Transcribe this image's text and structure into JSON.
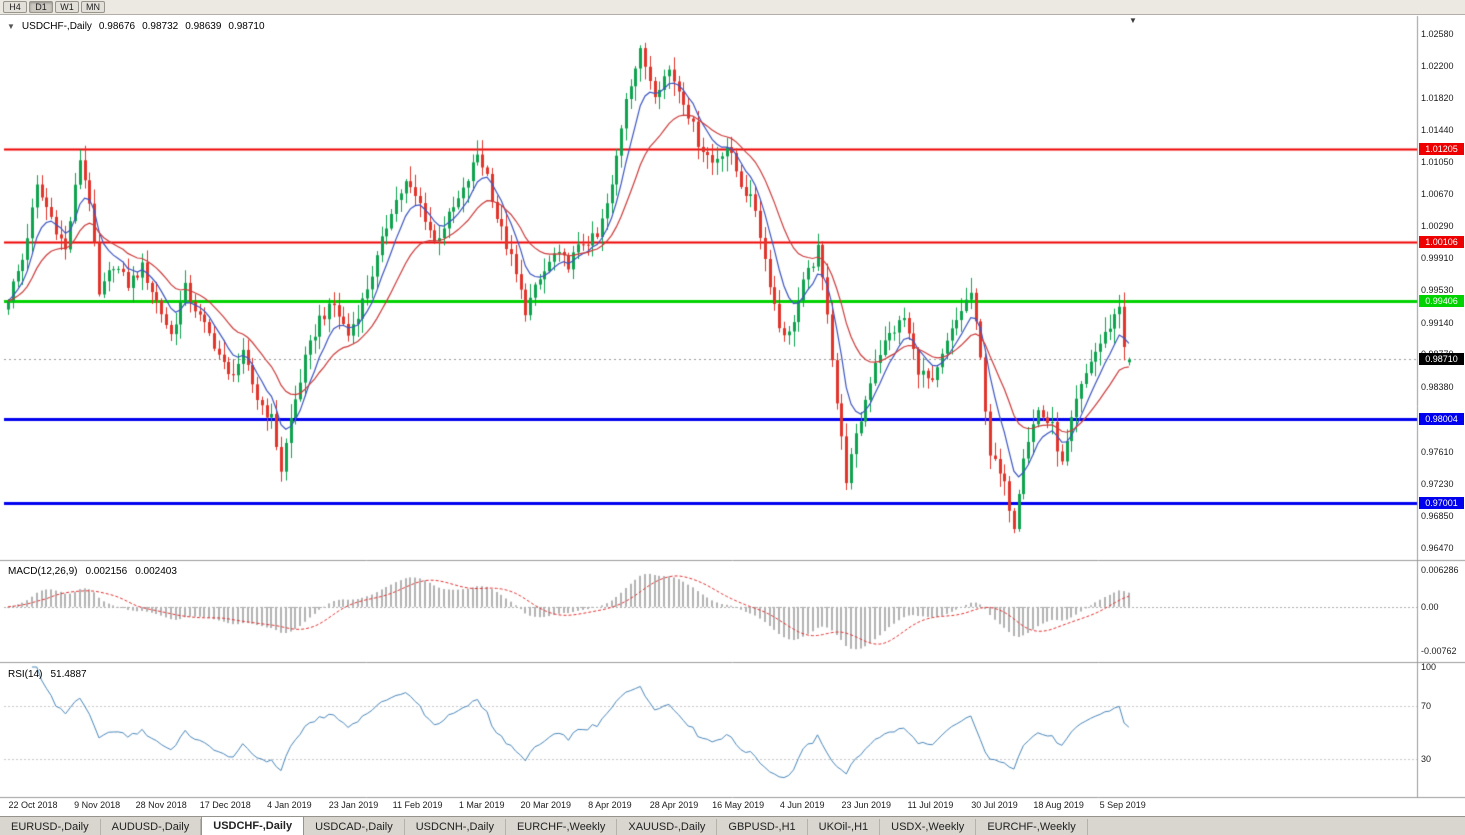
{
  "icons": {
    "expand_caret": "▼",
    "end_marker": "▼"
  },
  "toolbar": {
    "periods": [
      {
        "label": "H4",
        "active": false
      },
      {
        "label": "D1",
        "active": true
      },
      {
        "label": "W1",
        "active": false
      },
      {
        "label": "MN",
        "active": false
      }
    ]
  },
  "chart": {
    "header": {
      "symbol": "USDCHF-,Daily",
      "open": "0.98676",
      "high": "0.98732",
      "low": "0.98639",
      "close": "0.98710"
    },
    "price_axis_ticks": [
      "1.02580",
      "1.02200",
      "1.01820",
      "1.01440",
      "1.01050",
      "1.00670",
      "1.00290",
      "0.99910",
      "0.99530",
      "0.99140",
      "0.98770",
      "0.98380",
      "0.97610",
      "0.97230",
      "0.96850",
      "0.96470"
    ],
    "levels": [
      {
        "label": "1.01205",
        "value": 1.01205,
        "color": "#ee0000",
        "width": 2
      },
      {
        "label": "1.00106",
        "value": 1.00106,
        "color": "#ee0000",
        "width": 2
      },
      {
        "label": "0.99406",
        "value": 0.99406,
        "color": "#00d200",
        "width": 3
      },
      {
        "label": "0.98004",
        "value": 0.98004,
        "color": "#0000ee",
        "width": 3
      },
      {
        "label": "0.97001",
        "value": 0.97001,
        "color": "#0000ee",
        "width": 3
      }
    ],
    "current_price": {
      "label": "0.98710",
      "value": 0.9871,
      "bg": "#000000"
    },
    "date_axis": [
      "22 Oct 2018",
      "9 Nov 2018",
      "28 Nov 2018",
      "17 Dec 2018",
      "4 Jan 2019",
      "23 Jan 2019",
      "11 Feb 2019",
      "1 Mar 2019",
      "20 Mar 2019",
      "8 Apr 2019",
      "28 Apr 2019",
      "16 May 2019",
      "4 Jun 2019",
      "23 Jun 2019",
      "11 Jul 2019",
      "30 Jul 2019",
      "18 Aug 2019",
      "5 Sep 2019"
    ]
  },
  "macd": {
    "name": "MACD(12,26,9)",
    "value_main": "0.002156",
    "value_signal": "0.002403",
    "axis": [
      {
        "label": "0.006286",
        "value": 0.006286
      },
      {
        "label": "0.00",
        "value": 0
      },
      {
        "label": "-0.00762",
        "value": -0.00762
      }
    ]
  },
  "rsi": {
    "name": "RSI(14)",
    "value": "51.4887",
    "axis": [
      {
        "label": "100",
        "value": 100
      },
      {
        "label": "70",
        "value": 70
      },
      {
        "label": "30",
        "value": 30
      }
    ],
    "levels": [
      70,
      30
    ]
  },
  "tabs": [
    {
      "label": "EURUSD-,Daily",
      "active": false
    },
    {
      "label": "AUDUSD-,Daily",
      "active": false
    },
    {
      "label": "USDCHF-,Daily",
      "active": true
    },
    {
      "label": "USDCAD-,Daily",
      "active": false
    },
    {
      "label": "USDCNH-,Daily",
      "active": false
    },
    {
      "label": "EURCHF-,Weekly",
      "active": false
    },
    {
      "label": "XAUUSD-,Daily",
      "active": false
    },
    {
      "label": "GBPUSD-,H1",
      "active": false
    },
    {
      "label": "UKOil-,H1",
      "active": false
    },
    {
      "label": "USDX-,Weekly",
      "active": false
    },
    {
      "label": "EURCHF-,Weekly",
      "active": false
    }
  ],
  "colors": {
    "up": "#0fa34f",
    "down": "#e0352b",
    "ma_fast": "#3c55c0",
    "ma_slow": "#cc3b3b",
    "macd_hist": "#b3b3b3",
    "macd_signal": "#e03333",
    "rsi_line": "#4a86b8",
    "level_dotted": "#9a9a9a"
  },
  "chart_data": {
    "type": "candlestick",
    "title": "USDCHF-,Daily",
    "symbol": "USDCHF-",
    "timeframe": "Daily",
    "n": 235,
    "last_ohlc": {
      "open": 0.98676,
      "high": 0.98732,
      "low": 0.98639,
      "close": 0.9871
    },
    "y_axis_range": [
      0.9641,
      1.0279
    ],
    "y_axis_ticks": [
      1.0258,
      1.022,
      1.0182,
      1.0144,
      1.0105,
      1.0067,
      1.0029,
      0.9991,
      0.9953,
      0.9914,
      0.9877,
      0.9838,
      0.9761,
      0.9723,
      0.9685,
      0.9647
    ],
    "x_axis_dates": [
      "22 Oct 2018",
      "9 Nov 2018",
      "28 Nov 2018",
      "17 Dec 2018",
      "4 Jan 2019",
      "23 Jan 2019",
      "11 Feb 2019",
      "1 Mar 2019",
      "20 Mar 2019",
      "8 Apr 2019",
      "28 Apr 2019",
      "16 May 2019",
      "4 Jun 2019",
      "23 Jun 2019",
      "11 Jul 2019",
      "30 Jul 2019",
      "18 Aug 2019",
      "5 Sep 2019"
    ],
    "horizontal_levels": [
      {
        "price": 1.01205,
        "color": "red"
      },
      {
        "price": 1.00106,
        "color": "red"
      },
      {
        "price": 0.99406,
        "color": "green"
      },
      {
        "price": 0.98004,
        "color": "blue"
      },
      {
        "price": 0.97001,
        "color": "blue"
      }
    ],
    "close_anchors": [
      [
        0,
        0.9945
      ],
      [
        3,
        0.999
      ],
      [
        6,
        1.0075
      ],
      [
        9,
        1.004
      ],
      [
        12,
        1.0
      ],
      [
        15,
        1.011
      ],
      [
        17,
        1.006
      ],
      [
        19,
        0.9945
      ],
      [
        22,
        0.9985
      ],
      [
        25,
        0.996
      ],
      [
        28,
        0.998
      ],
      [
        31,
        0.994
      ],
      [
        34,
        0.99
      ],
      [
        37,
        0.9955
      ],
      [
        40,
        0.992
      ],
      [
        43,
        0.989
      ],
      [
        46,
        0.985
      ],
      [
        49,
        0.9875
      ],
      [
        52,
        0.9825
      ],
      [
        55,
        0.98
      ],
      [
        57,
        0.974
      ],
      [
        59,
        0.98
      ],
      [
        62,
        0.987
      ],
      [
        65,
        0.992
      ],
      [
        68,
        0.9935
      ],
      [
        71,
        0.99
      ],
      [
        74,
        0.994
      ],
      [
        77,
        0.999
      ],
      [
        80,
        1.005
      ],
      [
        83,
        1.008
      ],
      [
        86,
        1.0055
      ],
      [
        89,
        1.001
      ],
      [
        92,
        1.004
      ],
      [
        95,
        1.007
      ],
      [
        98,
        1.0115
      ],
      [
        100,
        1.009
      ],
      [
        102,
        1.004
      ],
      [
        105,
        0.999
      ],
      [
        108,
        0.993
      ],
      [
        111,
        0.9965
      ],
      [
        114,
        0.9995
      ],
      [
        117,
        0.9985
      ],
      [
        120,
        1.001
      ],
      [
        123,
        1.0015
      ],
      [
        126,
        1.0075
      ],
      [
        129,
        1.0185
      ],
      [
        132,
        1.0235
      ],
      [
        135,
        1.019
      ],
      [
        138,
        1.0215
      ],
      [
        141,
        1.018
      ],
      [
        144,
        1.013
      ],
      [
        147,
        1.0105
      ],
      [
        150,
        1.0125
      ],
      [
        153,
        1.008
      ],
      [
        156,
        1.005
      ],
      [
        158,
        0.999
      ],
      [
        161,
        0.991
      ],
      [
        163,
        0.99
      ],
      [
        166,
        0.996
      ],
      [
        169,
        1.0
      ],
      [
        171,
        0.993
      ],
      [
        173,
        0.982
      ],
      [
        175,
        0.973
      ],
      [
        178,
        0.98
      ],
      [
        181,
        0.987
      ],
      [
        184,
        0.99
      ],
      [
        187,
        0.992
      ],
      [
        190,
        0.986
      ],
      [
        193,
        0.984
      ],
      [
        196,
        0.989
      ],
      [
        199,
        0.993
      ],
      [
        201,
        0.995
      ],
      [
        203,
        0.987
      ],
      [
        205,
        0.976
      ],
      [
        208,
        0.972
      ],
      [
        210,
        0.9675
      ],
      [
        212,
        0.976
      ],
      [
        215,
        0.981
      ],
      [
        218,
        0.979
      ],
      [
        220,
        0.9745
      ],
      [
        223,
        0.982
      ],
      [
        226,
        0.987
      ],
      [
        229,
        0.99
      ],
      [
        232,
        0.9935
      ],
      [
        233,
        0.989
      ],
      [
        234,
        0.9871
      ]
    ],
    "indicators": [
      {
        "type": "MACD",
        "params": [
          12,
          26,
          9
        ],
        "current": [
          0.002156,
          0.002403
        ],
        "axis": [
          0.006286,
          0,
          -0.00762
        ]
      },
      {
        "type": "RSI",
        "params": [
          14
        ],
        "current": 51.4887,
        "axis": [
          100,
          70,
          30
        ],
        "levels": [
          70,
          30
        ]
      }
    ]
  }
}
